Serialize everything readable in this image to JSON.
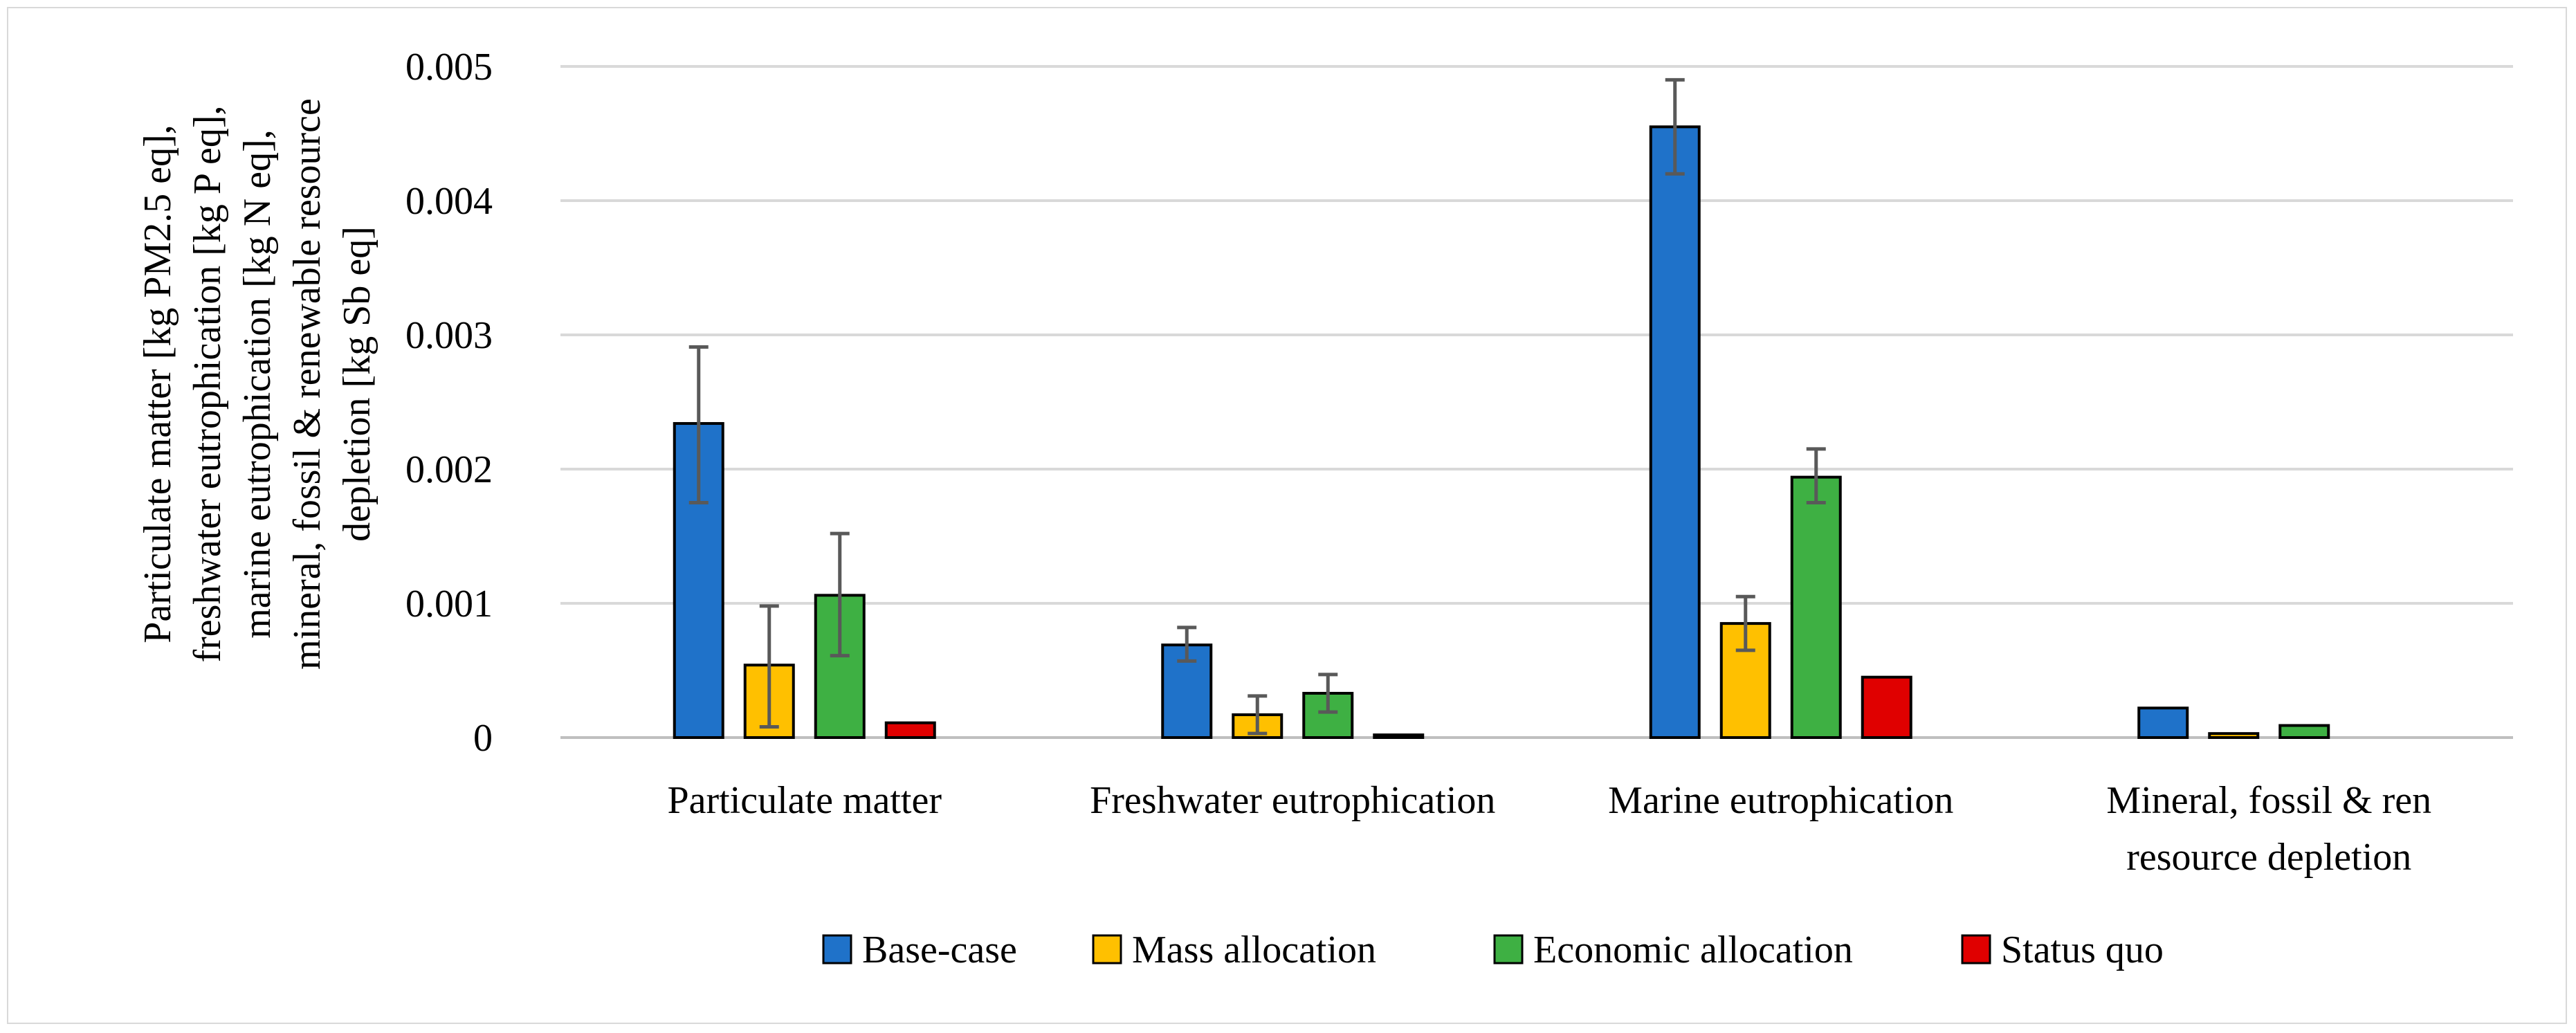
{
  "chart_data": {
    "type": "bar",
    "title": "",
    "ylabel_lines": [
      "Particulate matter [kg PM2.5 eq],",
      "freshwater eutrophication [kg P eq],",
      "marine eutrophication [kg N eq],",
      "mineral, fossil & renewable resource",
      "depletion [kg Sb eq]"
    ],
    "xlabel": "",
    "ylim": [
      0,
      0.005
    ],
    "yticks": [
      0,
      0.001,
      0.002,
      0.003,
      0.004,
      0.005
    ],
    "ytick_labels": [
      "0",
      "0.001",
      "0.002",
      "0.003",
      "0.004",
      "0.005"
    ],
    "grid": true,
    "legend_position": "bottom",
    "categories": [
      [
        "Particulate matter"
      ],
      [
        "Freshwater eutrophication"
      ],
      [
        "Marine eutrophication"
      ],
      [
        "Mineral, fossil & ren",
        "resource depletion"
      ]
    ],
    "series": [
      {
        "name": "Base-case",
        "color": "#1f72c9",
        "values": [
          0.00234,
          0.00069,
          0.00455,
          0.00022
        ],
        "err_low": [
          0.00175,
          0.00057,
          0.0042,
          null
        ],
        "err_high": [
          0.00291,
          0.00082,
          0.0049,
          null
        ]
      },
      {
        "name": "Mass allocation",
        "color": "#ffc000",
        "values": [
          0.00054,
          0.00017,
          0.00085,
          3e-05
        ],
        "err_low": [
          8e-05,
          3e-05,
          0.00065,
          null
        ],
        "err_high": [
          0.00098,
          0.00031,
          0.00105,
          null
        ]
      },
      {
        "name": "Economic allocation",
        "color": "#3eb043",
        "values": [
          0.00106,
          0.00033,
          0.00194,
          9e-05
        ],
        "err_low": [
          0.00061,
          0.00019,
          0.00175,
          null
        ],
        "err_high": [
          0.00152,
          0.00047,
          0.00215,
          null
        ]
      },
      {
        "name": "Status quo",
        "color": "#e00000",
        "values": [
          0.00011,
          2e-05,
          0.00045,
          0.0
        ],
        "err_low": [
          null,
          null,
          null,
          null
        ],
        "err_high": [
          null,
          null,
          null,
          null
        ]
      }
    ]
  }
}
